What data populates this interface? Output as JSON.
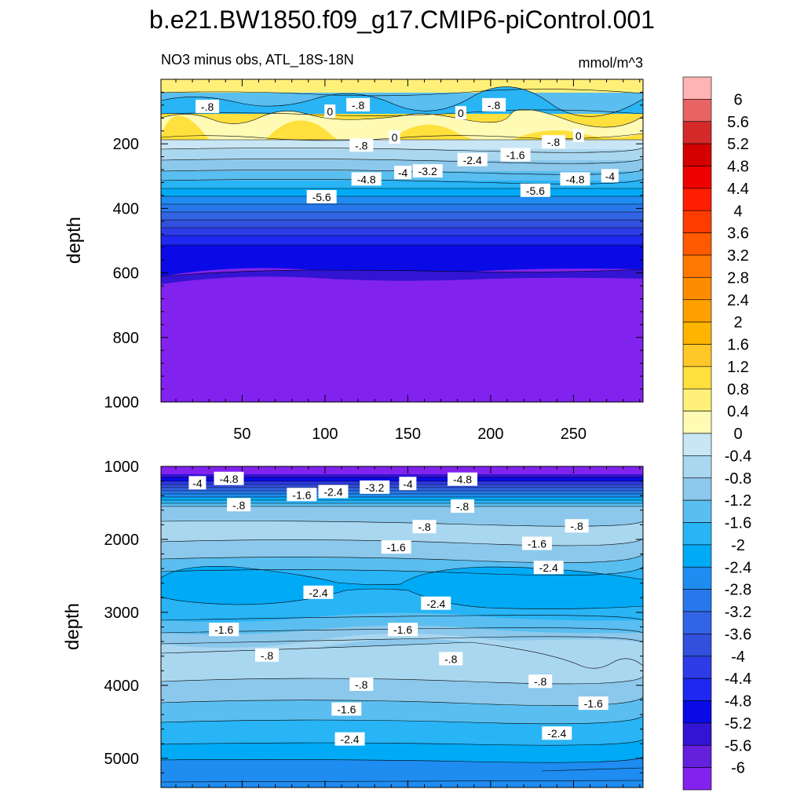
{
  "figure": {
    "title": "b.e21.BW1850.f09_g17.CMIP6-piControl.001",
    "subtitle_left": "NO3 minus obs, ATL_18S-18N",
    "subtitle_right": "mmol/m^3"
  },
  "chart_data": [
    {
      "type": "contour",
      "panel": "upper",
      "ylabel": "depth",
      "xlabel": "",
      "xlim": [
        1,
        292
      ],
      "ylim": [
        1000,
        0
      ],
      "xticks": [
        50,
        100,
        150,
        200,
        250
      ],
      "yticks": [
        200,
        400,
        600,
        800,
        1000
      ],
      "xtick_labels": [
        "50",
        "100",
        "150",
        "200",
        "250"
      ],
      "ytick_labels": [
        "200",
        "400",
        "600",
        "800",
        "1000"
      ],
      "contour_labels": [
        {
          "text": "-.8",
          "x": 29,
          "y": 85
        },
        {
          "text": "0",
          "x": 103,
          "y": 100
        },
        {
          "text": "-.8",
          "x": 120,
          "y": 80
        },
        {
          "text": "0",
          "x": 182,
          "y": 105
        },
        {
          "text": "-.8",
          "x": 202,
          "y": 80
        },
        {
          "text": "-.8",
          "x": 122,
          "y": 205
        },
        {
          "text": "0",
          "x": 142,
          "y": 180
        },
        {
          "text": "0",
          "x": 253,
          "y": 175
        },
        {
          "text": "-.8",
          "x": 238,
          "y": 195
        },
        {
          "text": "-1.6",
          "x": 215,
          "y": 235
        },
        {
          "text": "-2.4",
          "x": 189,
          "y": 250
        },
        {
          "text": "-3.2",
          "x": 162,
          "y": 285
        },
        {
          "text": "-4",
          "x": 147,
          "y": 290
        },
        {
          "text": "-4.8",
          "x": 125,
          "y": 310
        },
        {
          "text": "-5.6",
          "x": 98,
          "y": 365
        },
        {
          "text": "-5.6",
          "x": 227,
          "y": 345
        },
        {
          "text": "-4.8",
          "x": 251,
          "y": 310
        },
        {
          "text": "-4",
          "x": 272,
          "y": 300
        }
      ]
    },
    {
      "type": "contour",
      "panel": "lower",
      "ylabel": "depth",
      "xlabel": "",
      "xlim": [
        1,
        292
      ],
      "ylim": [
        5400,
        1000
      ],
      "xticks": [
        50,
        100,
        150,
        200,
        250
      ],
      "yticks": [
        1000,
        2000,
        3000,
        4000,
        5000
      ],
      "xtick_labels": [],
      "ytick_labels": [
        "1000",
        "2000",
        "3000",
        "4000",
        "5000"
      ],
      "contour_labels": [
        {
          "text": "-4",
          "x": 23,
          "y": 1230
        },
        {
          "text": "-4.8",
          "x": 42,
          "y": 1170
        },
        {
          "text": "-1.6",
          "x": 86,
          "y": 1390
        },
        {
          "text": "-2.4",
          "x": 105,
          "y": 1350
        },
        {
          "text": "-3.2",
          "x": 130,
          "y": 1290
        },
        {
          "text": "-4",
          "x": 150,
          "y": 1240
        },
        {
          "text": "-4.8",
          "x": 183,
          "y": 1180
        },
        {
          "text": "-.8",
          "x": 48,
          "y": 1530
        },
        {
          "text": "-.8",
          "x": 183,
          "y": 1550
        },
        {
          "text": "-.8",
          "x": 160,
          "y": 1830
        },
        {
          "text": "-.8",
          "x": 252,
          "y": 1820
        },
        {
          "text": "-1.6",
          "x": 143,
          "y": 2110
        },
        {
          "text": "-1.6",
          "x": 228,
          "y": 2060
        },
        {
          "text": "-2.4",
          "x": 235,
          "y": 2390
        },
        {
          "text": "-2.4",
          "x": 96,
          "y": 2730
        },
        {
          "text": "-2.4",
          "x": 167,
          "y": 2880
        },
        {
          "text": "-1.6",
          "x": 39,
          "y": 3240
        },
        {
          "text": "-1.6",
          "x": 147,
          "y": 3240
        },
        {
          "text": "-.8",
          "x": 65,
          "y": 3590
        },
        {
          "text": "-.8",
          "x": 176,
          "y": 3640
        },
        {
          "text": "-.8",
          "x": 122,
          "y": 3990
        },
        {
          "text": "-.8",
          "x": 230,
          "y": 3950
        },
        {
          "text": "-1.6",
          "x": 113,
          "y": 4330
        },
        {
          "text": "-1.6",
          "x": 262,
          "y": 4250
        },
        {
          "text": "-2.4",
          "x": 115,
          "y": 4740
        },
        {
          "text": "-2.4",
          "x": 240,
          "y": 4660
        }
      ]
    }
  ],
  "colorbar": {
    "levels": [
      "6",
      "5.6",
      "5.2",
      "4.8",
      "4.4",
      "4",
      "3.6",
      "3.2",
      "2.8",
      "2.4",
      "2",
      "1.6",
      "1.2",
      "0.8",
      "0.4",
      "0",
      "-0.4",
      "-0.8",
      "-1.2",
      "-1.6",
      "-2",
      "-2.4",
      "-2.8",
      "-3.2",
      "-3.6",
      "-4",
      "-4.4",
      "-4.8",
      "-5.2",
      "-5.6",
      "-6"
    ],
    "colors": [
      "#FFB4B4",
      "#E86464",
      "#D42A2A",
      "#D40000",
      "#EE0000",
      "#FF1E00",
      "#FF3C00",
      "#FF5A00",
      "#FF7800",
      "#FF8C00",
      "#FFA000",
      "#FFB400",
      "#FFC828",
      "#FFE03C",
      "#FFF07A",
      "#FFFAB4",
      "#C8E6F5",
      "#AAD7F0",
      "#8CC8EB",
      "#5ABEF0",
      "#28B4F5",
      "#00AAF5",
      "#1E8CF0",
      "#2878EB",
      "#3264E6",
      "#3250DC",
      "#2D3CE6",
      "#1E28F0",
      "#0A0AE6",
      "#3214D2",
      "#6420DC",
      "#8222EE"
    ]
  }
}
